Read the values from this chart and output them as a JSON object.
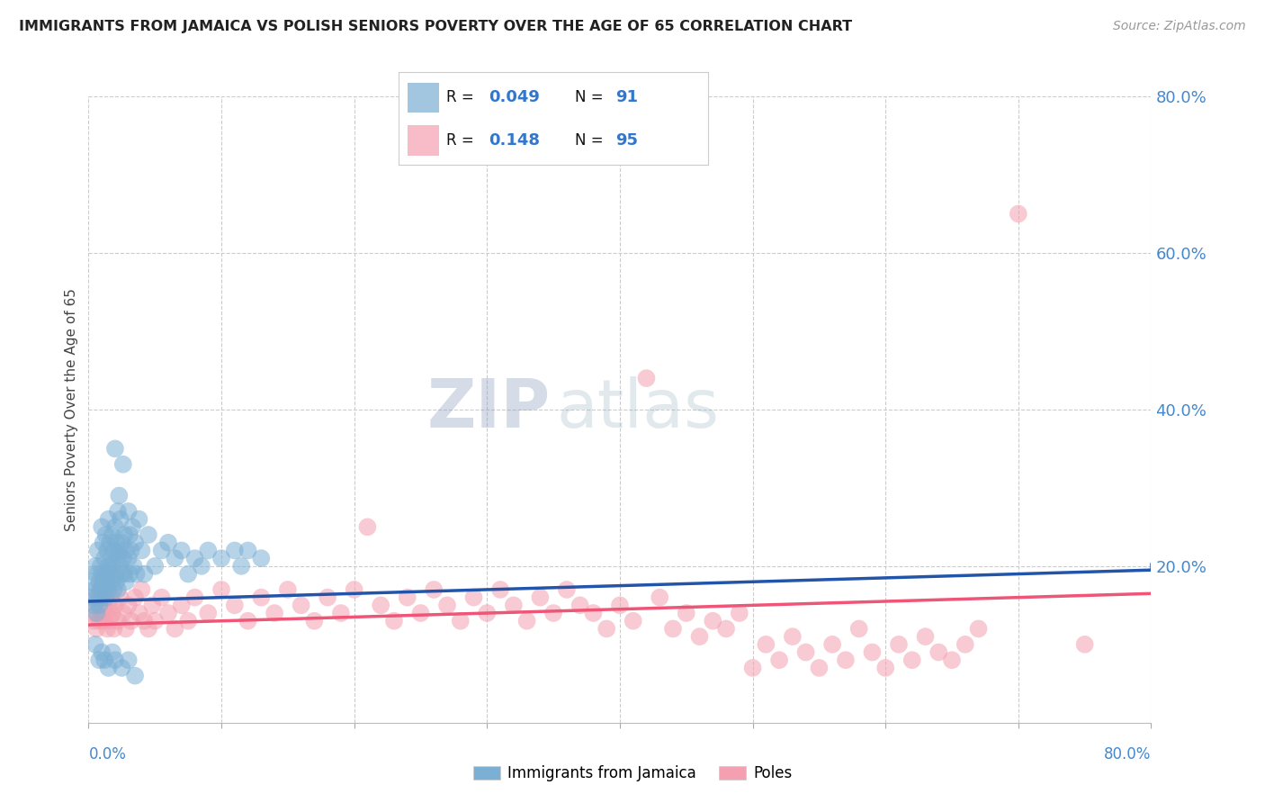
{
  "title": "IMMIGRANTS FROM JAMAICA VS POLISH SENIORS POVERTY OVER THE AGE OF 65 CORRELATION CHART",
  "source": "Source: ZipAtlas.com",
  "ylabel": "Seniors Poverty Over the Age of 65",
  "ytick_labels": [
    "20.0%",
    "40.0%",
    "60.0%",
    "80.0%"
  ],
  "ytick_values": [
    0.2,
    0.4,
    0.6,
    0.8
  ],
  "xlim": [
    0.0,
    0.8
  ],
  "ylim": [
    0.0,
    0.8
  ],
  "legend_label_blue": "Immigrants from Jamaica",
  "legend_label_pink": "Poles",
  "blue_color": "#7BAFD4",
  "pink_color": "#F4A0B0",
  "trend_blue_color": "#2255AA",
  "trend_pink_color": "#EE5577",
  "r_label_color": "#111111",
  "n_value_color": "#3377CC",
  "background_color": "#FFFFFF",
  "grid_color": "#CCCCCC",
  "axis_color": "#4488CC",
  "title_color": "#222222",
  "source_color": "#999999",
  "blue_scatter": [
    [
      0.002,
      0.18
    ],
    [
      0.003,
      0.16
    ],
    [
      0.004,
      0.15
    ],
    [
      0.005,
      0.2
    ],
    [
      0.005,
      0.17
    ],
    [
      0.006,
      0.14
    ],
    [
      0.006,
      0.19
    ],
    [
      0.007,
      0.16
    ],
    [
      0.007,
      0.22
    ],
    [
      0.008,
      0.18
    ],
    [
      0.008,
      0.15
    ],
    [
      0.009,
      0.2
    ],
    [
      0.009,
      0.17
    ],
    [
      0.01,
      0.25
    ],
    [
      0.01,
      0.19
    ],
    [
      0.01,
      0.16
    ],
    [
      0.011,
      0.23
    ],
    [
      0.011,
      0.18
    ],
    [
      0.012,
      0.21
    ],
    [
      0.012,
      0.17
    ],
    [
      0.013,
      0.24
    ],
    [
      0.013,
      0.19
    ],
    [
      0.013,
      0.16
    ],
    [
      0.014,
      0.22
    ],
    [
      0.014,
      0.18
    ],
    [
      0.015,
      0.26
    ],
    [
      0.015,
      0.2
    ],
    [
      0.015,
      0.17
    ],
    [
      0.016,
      0.23
    ],
    [
      0.016,
      0.19
    ],
    [
      0.017,
      0.21
    ],
    [
      0.017,
      0.18
    ],
    [
      0.018,
      0.24
    ],
    [
      0.018,
      0.2
    ],
    [
      0.019,
      0.22
    ],
    [
      0.019,
      0.17
    ],
    [
      0.02,
      0.35
    ],
    [
      0.02,
      0.25
    ],
    [
      0.02,
      0.19
    ],
    [
      0.021,
      0.23
    ],
    [
      0.021,
      0.18
    ],
    [
      0.022,
      0.27
    ],
    [
      0.022,
      0.21
    ],
    [
      0.022,
      0.17
    ],
    [
      0.023,
      0.29
    ],
    [
      0.023,
      0.22
    ],
    [
      0.024,
      0.26
    ],
    [
      0.024,
      0.2
    ],
    [
      0.025,
      0.23
    ],
    [
      0.025,
      0.19
    ],
    [
      0.026,
      0.33
    ],
    [
      0.026,
      0.21
    ],
    [
      0.027,
      0.24
    ],
    [
      0.027,
      0.19
    ],
    [
      0.028,
      0.22
    ],
    [
      0.028,
      0.18
    ],
    [
      0.03,
      0.27
    ],
    [
      0.03,
      0.21
    ],
    [
      0.031,
      0.24
    ],
    [
      0.031,
      0.19
    ],
    [
      0.032,
      0.22
    ],
    [
      0.033,
      0.25
    ],
    [
      0.034,
      0.2
    ],
    [
      0.035,
      0.23
    ],
    [
      0.036,
      0.19
    ],
    [
      0.038,
      0.26
    ],
    [
      0.04,
      0.22
    ],
    [
      0.042,
      0.19
    ],
    [
      0.045,
      0.24
    ],
    [
      0.05,
      0.2
    ],
    [
      0.055,
      0.22
    ],
    [
      0.06,
      0.23
    ],
    [
      0.065,
      0.21
    ],
    [
      0.07,
      0.22
    ],
    [
      0.075,
      0.19
    ],
    [
      0.08,
      0.21
    ],
    [
      0.085,
      0.2
    ],
    [
      0.09,
      0.22
    ],
    [
      0.1,
      0.21
    ],
    [
      0.11,
      0.22
    ],
    [
      0.115,
      0.2
    ],
    [
      0.12,
      0.22
    ],
    [
      0.13,
      0.21
    ],
    [
      0.005,
      0.1
    ],
    [
      0.008,
      0.08
    ],
    [
      0.01,
      0.09
    ],
    [
      0.012,
      0.08
    ],
    [
      0.015,
      0.07
    ],
    [
      0.018,
      0.09
    ],
    [
      0.02,
      0.08
    ],
    [
      0.025,
      0.07
    ],
    [
      0.03,
      0.08
    ],
    [
      0.035,
      0.06
    ]
  ],
  "pink_scatter": [
    [
      0.002,
      0.14
    ],
    [
      0.004,
      0.13
    ],
    [
      0.005,
      0.16
    ],
    [
      0.006,
      0.12
    ],
    [
      0.007,
      0.15
    ],
    [
      0.008,
      0.13
    ],
    [
      0.009,
      0.17
    ],
    [
      0.01,
      0.14
    ],
    [
      0.011,
      0.13
    ],
    [
      0.012,
      0.16
    ],
    [
      0.013,
      0.14
    ],
    [
      0.014,
      0.12
    ],
    [
      0.015,
      0.15
    ],
    [
      0.016,
      0.13
    ],
    [
      0.017,
      0.16
    ],
    [
      0.018,
      0.14
    ],
    [
      0.019,
      0.12
    ],
    [
      0.02,
      0.15
    ],
    [
      0.022,
      0.13
    ],
    [
      0.024,
      0.16
    ],
    [
      0.026,
      0.14
    ],
    [
      0.028,
      0.12
    ],
    [
      0.03,
      0.15
    ],
    [
      0.032,
      0.13
    ],
    [
      0.035,
      0.16
    ],
    [
      0.038,
      0.14
    ],
    [
      0.04,
      0.17
    ],
    [
      0.042,
      0.13
    ],
    [
      0.045,
      0.12
    ],
    [
      0.048,
      0.15
    ],
    [
      0.05,
      0.13
    ],
    [
      0.055,
      0.16
    ],
    [
      0.06,
      0.14
    ],
    [
      0.065,
      0.12
    ],
    [
      0.07,
      0.15
    ],
    [
      0.075,
      0.13
    ],
    [
      0.08,
      0.16
    ],
    [
      0.09,
      0.14
    ],
    [
      0.1,
      0.17
    ],
    [
      0.11,
      0.15
    ],
    [
      0.12,
      0.13
    ],
    [
      0.13,
      0.16
    ],
    [
      0.14,
      0.14
    ],
    [
      0.15,
      0.17
    ],
    [
      0.16,
      0.15
    ],
    [
      0.17,
      0.13
    ],
    [
      0.18,
      0.16
    ],
    [
      0.19,
      0.14
    ],
    [
      0.2,
      0.17
    ],
    [
      0.21,
      0.25
    ],
    [
      0.22,
      0.15
    ],
    [
      0.23,
      0.13
    ],
    [
      0.24,
      0.16
    ],
    [
      0.25,
      0.14
    ],
    [
      0.26,
      0.17
    ],
    [
      0.27,
      0.15
    ],
    [
      0.28,
      0.13
    ],
    [
      0.29,
      0.16
    ],
    [
      0.3,
      0.14
    ],
    [
      0.31,
      0.17
    ],
    [
      0.32,
      0.15
    ],
    [
      0.33,
      0.13
    ],
    [
      0.34,
      0.16
    ],
    [
      0.35,
      0.14
    ],
    [
      0.36,
      0.17
    ],
    [
      0.37,
      0.15
    ],
    [
      0.38,
      0.14
    ],
    [
      0.39,
      0.12
    ],
    [
      0.4,
      0.15
    ],
    [
      0.41,
      0.13
    ],
    [
      0.42,
      0.44
    ],
    [
      0.43,
      0.16
    ],
    [
      0.44,
      0.12
    ],
    [
      0.45,
      0.14
    ],
    [
      0.46,
      0.11
    ],
    [
      0.47,
      0.13
    ],
    [
      0.48,
      0.12
    ],
    [
      0.49,
      0.14
    ],
    [
      0.5,
      0.07
    ],
    [
      0.51,
      0.1
    ],
    [
      0.52,
      0.08
    ],
    [
      0.53,
      0.11
    ],
    [
      0.54,
      0.09
    ],
    [
      0.55,
      0.07
    ],
    [
      0.56,
      0.1
    ],
    [
      0.57,
      0.08
    ],
    [
      0.58,
      0.12
    ],
    [
      0.59,
      0.09
    ],
    [
      0.6,
      0.07
    ],
    [
      0.61,
      0.1
    ],
    [
      0.62,
      0.08
    ],
    [
      0.63,
      0.11
    ],
    [
      0.64,
      0.09
    ],
    [
      0.65,
      0.08
    ],
    [
      0.66,
      0.1
    ],
    [
      0.67,
      0.12
    ],
    [
      0.7,
      0.65
    ],
    [
      0.75,
      0.1
    ]
  ],
  "blue_trend": [
    0.0,
    0.155,
    0.8,
    0.195
  ],
  "pink_trend": [
    0.0,
    0.125,
    0.8,
    0.165
  ],
  "watermark_zip_color": "#BBBBDD",
  "watermark_atlas_color": "#BBCCCC"
}
